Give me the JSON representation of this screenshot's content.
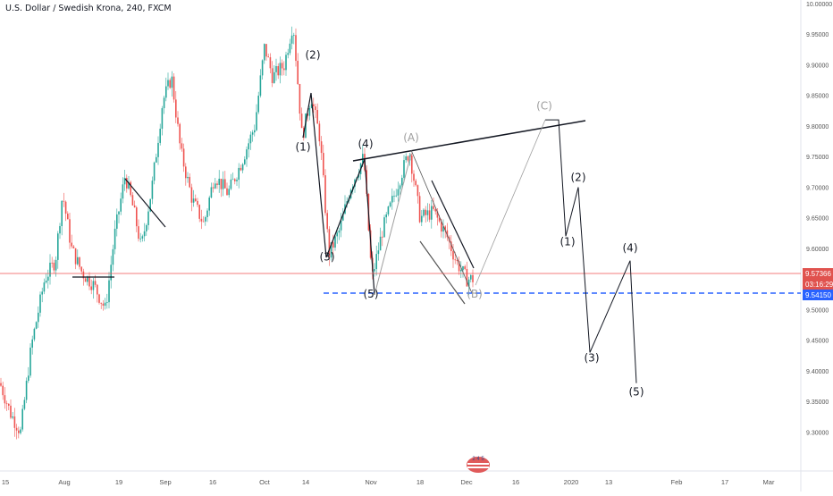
{
  "chart_title": "U.S. Dollar / Swedish Krona, 240, FXCM",
  "colors": {
    "up": "#26a69a",
    "down": "#ef5350",
    "support_line": "#2962ff",
    "current_price_line": "#ef5350",
    "wave_line": "#131722",
    "corrective_line": "#9e9e9e",
    "price_badge": "#e0524e",
    "support_badge": "#2962ff"
  },
  "chart_data": {
    "type": "candlestick",
    "price_axis": {
      "min": 9.27,
      "max": 10.0,
      "ticks": [
        "10.00000",
        "9.95000",
        "9.90000",
        "9.85000",
        "9.80000",
        "9.75000",
        "9.70000",
        "9.65000",
        "9.60000",
        "9.55000",
        "9.50000",
        "9.45000",
        "9.40000",
        "9.35000",
        "9.30000"
      ]
    },
    "time_axis_labels": [
      "15",
      "Aug",
      "19",
      "Sep",
      "16",
      "Oct",
      "14",
      "Nov",
      "18",
      "Dec",
      "16",
      "2020",
      "13",
      "Feb",
      "17",
      "Mar"
    ],
    "current_price": {
      "value": "9.57366",
      "countdown": "03:16:29"
    },
    "support_level": {
      "value": "9.54150"
    },
    "price_path": [
      [
        0,
        9.38
      ],
      [
        12,
        9.33
      ],
      [
        23,
        9.3
      ],
      [
        35,
        9.44
      ],
      [
        50,
        9.55
      ],
      [
        62,
        9.58
      ],
      [
        70,
        9.69
      ],
      [
        80,
        9.6
      ],
      [
        92,
        9.56
      ],
      [
        105,
        9.54
      ],
      [
        118,
        9.5
      ],
      [
        128,
        9.62
      ],
      [
        140,
        9.72
      ],
      [
        150,
        9.66
      ],
      [
        158,
        9.6
      ],
      [
        170,
        9.7
      ],
      [
        182,
        9.84
      ],
      [
        192,
        9.88
      ],
      [
        202,
        9.76
      ],
      [
        215,
        9.68
      ],
      [
        228,
        9.64
      ],
      [
        240,
        9.72
      ],
      [
        255,
        9.69
      ],
      [
        270,
        9.74
      ],
      [
        285,
        9.8
      ],
      [
        296,
        9.93
      ],
      [
        305,
        9.88
      ],
      [
        318,
        9.9
      ],
      [
        328,
        9.97
      ],
      [
        338,
        9.78
      ],
      [
        348,
        9.85
      ],
      [
        358,
        9.78
      ],
      [
        368,
        9.59
      ],
      [
        380,
        9.63
      ],
      [
        392,
        9.7
      ],
      [
        407,
        9.75
      ],
      [
        416,
        9.55
      ],
      [
        428,
        9.63
      ],
      [
        444,
        9.7
      ],
      [
        458,
        9.76
      ],
      [
        470,
        9.65
      ],
      [
        485,
        9.66
      ],
      [
        500,
        9.62
      ],
      [
        510,
        9.58
      ],
      [
        522,
        9.55
      ],
      [
        532,
        9.55
      ]
    ],
    "elliott_wave_labels": [
      {
        "text": "(2)",
        "price": 9.91,
        "style": "impulse"
      },
      {
        "text": "(1)",
        "price": 9.76,
        "style": "impulse"
      },
      {
        "text": "(4)",
        "price": 9.765,
        "style": "impulse"
      },
      {
        "text": "(3)",
        "price": 9.58,
        "style": "impulse"
      },
      {
        "text": "(5)",
        "price": 9.52,
        "style": "impulse"
      },
      {
        "text": "(A)",
        "price": 9.775,
        "style": "corrective"
      },
      {
        "text": "(B)",
        "price": 9.52,
        "style": "corrective"
      },
      {
        "text": "(C)",
        "price": 9.827,
        "style": "corrective"
      },
      {
        "text": "(1)",
        "price": 9.605,
        "style": "impulse"
      },
      {
        "text": "(2)",
        "price": 9.71,
        "style": "impulse"
      },
      {
        "text": "(3)",
        "price": 9.415,
        "style": "impulse"
      },
      {
        "text": "(4)",
        "price": 9.595,
        "style": "impulse"
      },
      {
        "text": "(5)",
        "price": 9.36,
        "style": "impulse"
      }
    ],
    "projection_path": [
      [
        532,
        9.54
      ],
      [
        610,
        9.81
      ],
      [
        625,
        9.81
      ],
      [
        633,
        9.62
      ],
      [
        647,
        9.7
      ],
      [
        660,
        9.43
      ],
      [
        705,
        9.58
      ],
      [
        712,
        9.38
      ]
    ],
    "grid": false
  },
  "logo_text": "2 4 5"
}
